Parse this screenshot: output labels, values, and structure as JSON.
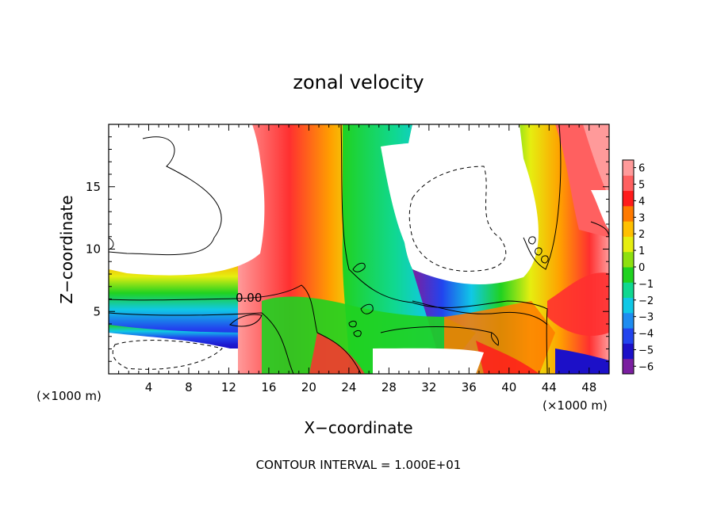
{
  "chart_data": {
    "type": "heatmap",
    "title": "zonal velocity",
    "xlabel": "X−coordinate",
    "ylabel": "Z−coordinate",
    "x_unit_label": "(×1000 m)",
    "y_unit_label": "(×1000 m)",
    "contour_note": "CONTOUR INTERVAL = 1.000E+01",
    "contour_label": "0.00",
    "xlim": [
      0,
      50
    ],
    "ylim": [
      0,
      20
    ],
    "x_ticks": [
      4,
      8,
      12,
      16,
      20,
      24,
      28,
      32,
      36,
      40,
      44,
      48
    ],
    "x_tick_labels": [
      "4",
      "8",
      "12",
      "16",
      "20",
      "24",
      "28",
      "32",
      "36",
      "40",
      "44",
      "48"
    ],
    "y_ticks": [
      5,
      10,
      15
    ],
    "y_tick_labels": [
      "5",
      "10",
      "15"
    ],
    "colorbar": {
      "min": -6,
      "max": 6,
      "tick_values": [
        6,
        5,
        4,
        3,
        2,
        1,
        0,
        -1,
        -2,
        -3,
        -4,
        -5,
        -6
      ],
      "tick_labels": [
        "6",
        "5",
        "4",
        "3",
        "2",
        "1",
        "0",
        "−1",
        "−2",
        "−3",
        "−4",
        "−5",
        "−6"
      ],
      "colors": [
        "#7a1fa0",
        "#1c10c8",
        "#2244ee",
        "#1e8cf0",
        "#10c8e6",
        "#10d890",
        "#20d220",
        "#8ee010",
        "#e6ee10",
        "#ffc000",
        "#ff7a00",
        "#ff1c1c",
        "#ff6060",
        "#ff9a9a"
      ]
    }
  }
}
